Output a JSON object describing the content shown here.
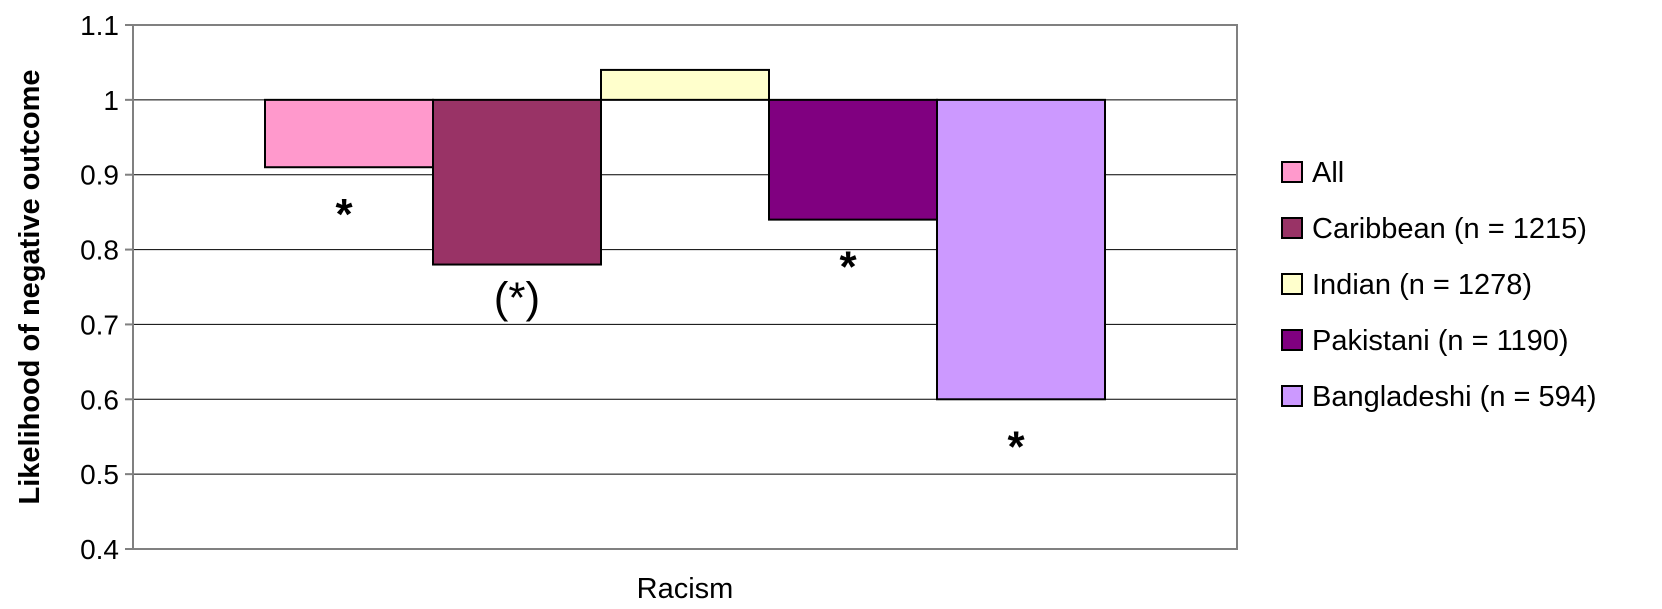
{
  "chart_data": {
    "type": "bar",
    "categories": [
      "Racism"
    ],
    "baseline": 1,
    "series": [
      {
        "name": "All",
        "values": [
          0.91
        ],
        "color": "#FF99CC",
        "significance": "*"
      },
      {
        "name": "Caribbean (n = 1215)",
        "values": [
          0.78
        ],
        "color": "#993366",
        "significance": "(*)"
      },
      {
        "name": "Indian (n = 1278)",
        "values": [
          1.04
        ],
        "color": "#FFFFCC",
        "significance": ""
      },
      {
        "name": "Pakistani (n = 1190)",
        "values": [
          0.84
        ],
        "color": "#800080",
        "significance": "*"
      },
      {
        "name": "Bangladeshi (n = 594)",
        "values": [
          0.6
        ],
        "color": "#CC99FF",
        "significance": "*"
      }
    ],
    "ylabel": "Likelihood of negative outcome",
    "xlabel": "",
    "ylim": [
      0.4,
      1.1
    ],
    "yticks": [
      "0.4",
      "0.5",
      "0.6",
      "0.7",
      "0.8",
      "0.9",
      "1",
      "1.1"
    ],
    "grid": true,
    "legend_position": "right"
  }
}
